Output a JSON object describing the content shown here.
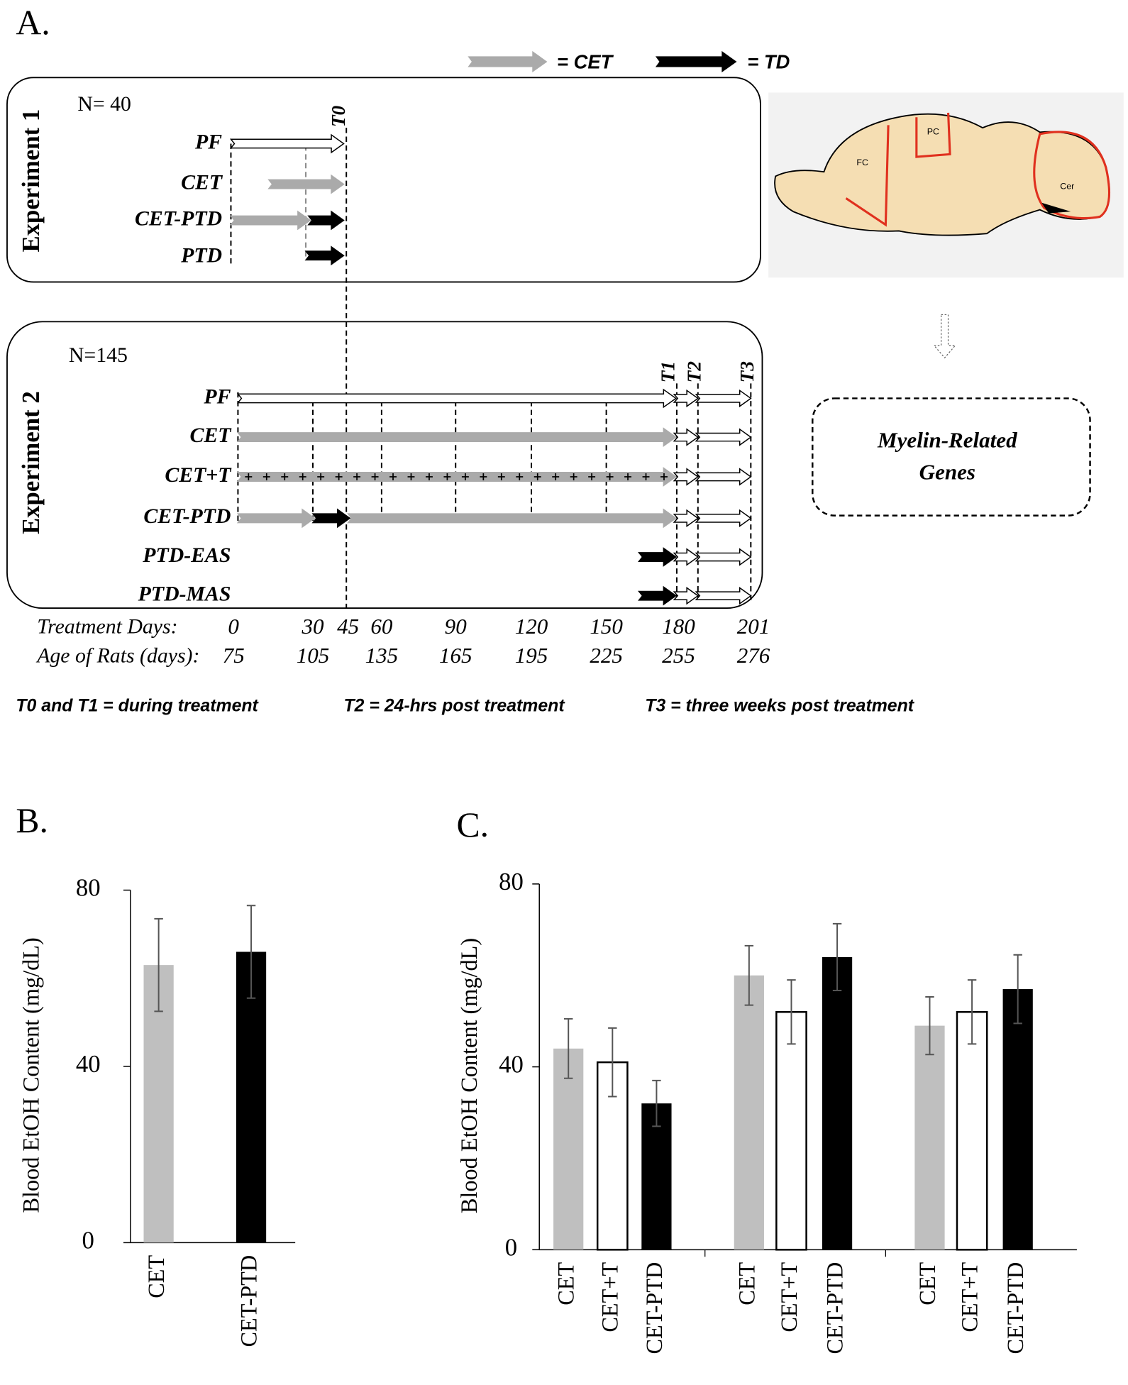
{
  "panel_a": {
    "label": "A.",
    "legend": [
      "= CET",
      "= TD"
    ],
    "experiment_1": {
      "title": "Experiment 1",
      "n": "N= 40",
      "rows": [
        "PF",
        "CET",
        "CET-PTD",
        "PTD"
      ],
      "markers": [
        "T0"
      ]
    },
    "experiment_2": {
      "title": "Experiment 2",
      "n": "N=145",
      "rows": [
        "PF",
        "CET",
        "CET+T",
        "CET-PTD",
        "PTD-EAS",
        "PTD-MAS"
      ],
      "markers": [
        "T1",
        "T2",
        "T3"
      ]
    },
    "treatment_days_label": "Treatment Days:",
    "treatment_days": [
      "0",
      "30",
      "45",
      "60",
      "90",
      "120",
      "150",
      "180",
      "201"
    ],
    "age_label": "Age of Rats (days):",
    "ages": [
      "75",
      "105",
      "135",
      "165",
      "195",
      "225",
      "255",
      "276"
    ],
    "footnotes": [
      "T0 and T1 = during treatment",
      "T2 = 24-hrs post treatment",
      "T3 = three weeks post treatment"
    ],
    "brain_regions": [
      "FC",
      "PC",
      "Cer"
    ],
    "outcome": [
      "Myelin-Related",
      "Genes"
    ]
  },
  "chart_data": [
    {
      "type": "bar",
      "panel": "B.",
      "ylabel": "Blood EtOH  Content (mg/dL)",
      "categories": [
        "CET",
        "CET-PTD"
      ],
      "values": [
        63,
        66
      ],
      "errors": [
        10.5,
        10.5
      ],
      "colors": [
        "#bfbfbf",
        "#000000"
      ],
      "ylim": [
        0,
        80
      ],
      "yticks": [
        0,
        40,
        80
      ]
    },
    {
      "type": "bar",
      "panel": "C.",
      "ylabel": "Blood EtOH Content (mg/dL)",
      "categories": [
        "CET",
        "CET+T",
        "CET-PTD",
        "CET",
        "CET+T",
        "CET-PTD",
        "CET",
        "CET+T",
        "CET-PTD"
      ],
      "values": [
        44,
        41,
        32,
        60,
        52,
        64,
        49,
        52,
        57
      ],
      "errors": [
        6.5,
        7.5,
        5,
        6.5,
        7,
        7.3,
        6.3,
        7,
        7.5
      ],
      "colors": [
        "#bfbfbf",
        "#ffffff",
        "#000000",
        "#bfbfbf",
        "#ffffff",
        "#000000",
        "#bfbfbf",
        "#ffffff",
        "#000000"
      ],
      "ylim": [
        0,
        80
      ],
      "yticks": [
        0,
        40,
        80
      ]
    }
  ]
}
